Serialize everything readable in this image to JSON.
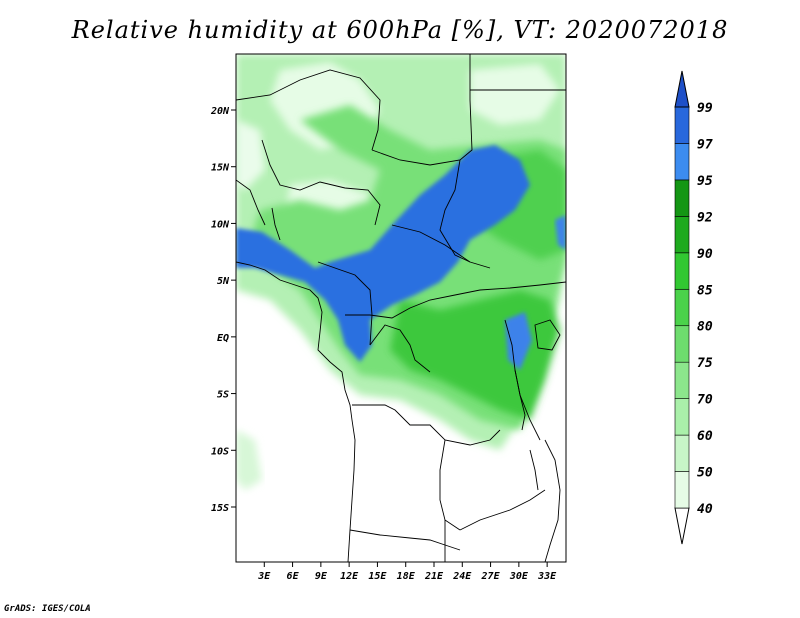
{
  "title": "Relative humidity at 600hPa [%], VT: 2020072018",
  "credit": "GrADS: IGES/COLA",
  "axes": {
    "lat_ticks": [
      {
        "lat": 20,
        "label": "20N"
      },
      {
        "lat": 15,
        "label": "15N"
      },
      {
        "lat": 10,
        "label": "10N"
      },
      {
        "lat": 5,
        "label": "5N"
      },
      {
        "lat": 0,
        "label": "EQ"
      },
      {
        "lat": -5,
        "label": "5S"
      },
      {
        "lat": -10,
        "label": "10S"
      },
      {
        "lat": -15,
        "label": "15S"
      }
    ],
    "lon_ticks": [
      {
        "lon": 3,
        "label": "3E"
      },
      {
        "lon": 6,
        "label": "6E"
      },
      {
        "lon": 9,
        "label": "9E"
      },
      {
        "lon": 12,
        "label": "12E"
      },
      {
        "lon": 15,
        "label": "15E"
      },
      {
        "lon": 18,
        "label": "18E"
      },
      {
        "lon": 21,
        "label": "21E"
      },
      {
        "lon": 24,
        "label": "24E"
      },
      {
        "lon": 27,
        "label": "27E"
      },
      {
        "lon": 30,
        "label": "30E"
      },
      {
        "lon": 33,
        "label": "33E"
      }
    ],
    "lon_range": [
      0,
      35
    ],
    "lat_range": [
      -20,
      25
    ]
  },
  "colorbar": {
    "levels": [
      "40",
      "50",
      "60",
      "70",
      "75",
      "80",
      "85",
      "90",
      "92",
      "95",
      "97",
      "99"
    ],
    "colors": [
      "#ffffff",
      "#e6fce6",
      "#c8f5c8",
      "#aaf0aa",
      "#8ce68c",
      "#6edc6e",
      "#4bd24b",
      "#32c832",
      "#1eaa1e",
      "#149614",
      "#3c8cf0",
      "#2868dc",
      "#1e50c8"
    ]
  }
}
